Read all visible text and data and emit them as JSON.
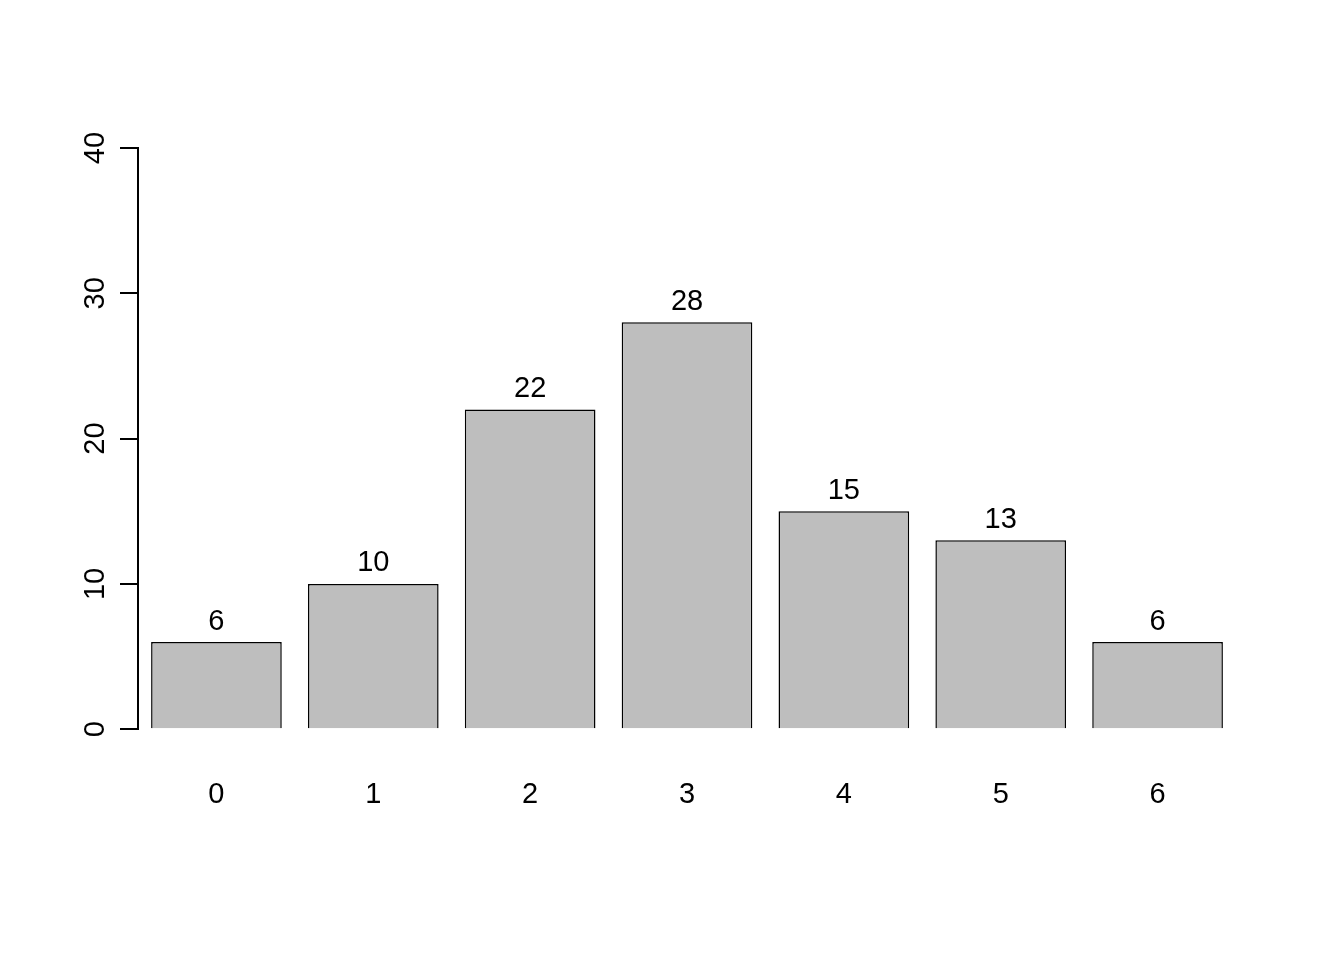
{
  "chart_data": {
    "type": "bar",
    "categories": [
      "0",
      "1",
      "2",
      "3",
      "4",
      "5",
      "6"
    ],
    "values": [
      6,
      10,
      22,
      28,
      15,
      13,
      6
    ],
    "color": "#bebebe",
    "ylim": [
      0,
      40
    ],
    "yticks": [
      0,
      10,
      20,
      30,
      40
    ],
    "data_labels": true
  }
}
